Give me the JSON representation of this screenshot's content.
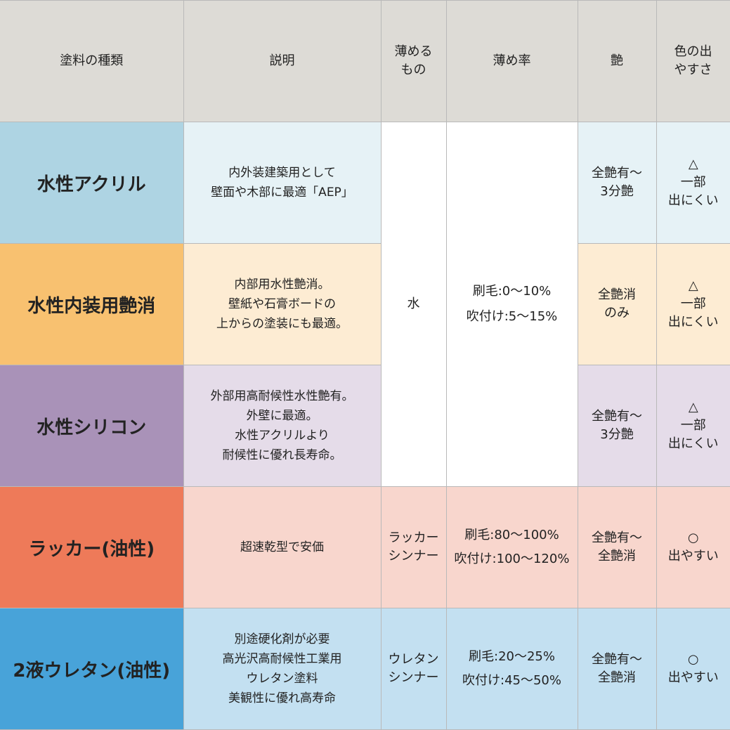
{
  "headers": {
    "type": "塗料の種類",
    "description": "説明",
    "thinner": [
      "薄める",
      "もの"
    ],
    "ratio": "薄め率",
    "gloss": "艶",
    "color": [
      "色の出",
      "やすさ"
    ]
  },
  "shared": {
    "water_thinner": "水",
    "water_ratio": [
      "刷毛:0〜10%",
      "吹付け:5〜15%"
    ]
  },
  "rows": [
    {
      "name": "水性アクリル",
      "name_color": "#aed4e3",
      "cell_color": "#e6f2f6",
      "description": [
        "内外装建築用として",
        "壁面や木部に最適「AEP」"
      ],
      "gloss": [
        "全艶有〜",
        "3分艶"
      ],
      "color": [
        "△",
        "一部",
        "出にくい"
      ]
    },
    {
      "name": "水性内装用艶消",
      "name_color": "#f8c170",
      "cell_color": "#fdecd3",
      "description": [
        "内部用水性艶消。",
        "壁紙や石膏ボードの",
        "上からの塗装にも最適。"
      ],
      "gloss": [
        "全艶消",
        "のみ"
      ],
      "color": [
        "△",
        "一部",
        "出にくい"
      ]
    },
    {
      "name": "水性シリコン",
      "name_color": "#a992b8",
      "cell_color": "#e5dce9",
      "description": [
        "外部用高耐候性水性艶有。",
        "外壁に最適。",
        "水性アクリルより",
        "耐候性に優れ長寿命。"
      ],
      "gloss": [
        "全艶有〜",
        "3分艶"
      ],
      "color": [
        "△",
        "一部",
        "出にくい"
      ]
    },
    {
      "name": "ラッカー(油性)",
      "name_color": "#ee7a59",
      "cell_color": "#f8d6cd",
      "description": [
        "超速乾型で安価"
      ],
      "thinner": [
        "ラッカー",
        "シンナー"
      ],
      "ratio": [
        "刷毛:80〜100%",
        "吹付け:100〜120%"
      ],
      "gloss": [
        "全艶有〜",
        "全艶消"
      ],
      "color": [
        "○",
        "出やすい"
      ]
    },
    {
      "name": "2液ウレタン(油性)",
      "name_color": "#48a3d9",
      "cell_color": "#c3e0f1",
      "description": [
        "別途硬化剤が必要",
        "高光沢高耐候性工業用",
        "ウレタン塗料",
        "美観性に優れ高寿命"
      ],
      "thinner": [
        "ウレタン",
        "シンナー"
      ],
      "ratio": [
        "刷毛:20〜25%",
        "吹付け:45〜50%"
      ],
      "gloss": [
        "全艶有〜",
        "全艶消"
      ],
      "color": [
        "○",
        "出やすい"
      ]
    }
  ]
}
